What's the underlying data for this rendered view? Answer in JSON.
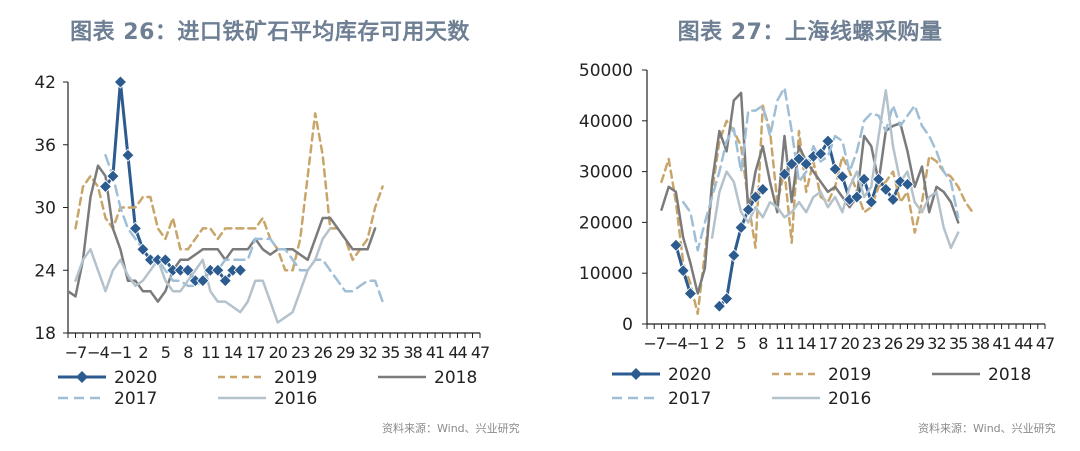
{
  "charts": [
    {
      "title": "图表 26：进口铁矿石平均库存可用天数",
      "source": "资料来源：Wind、兴业研究"
    },
    {
      "title": "图表 27：上海线螺采购量",
      "source": "资料来源：Wind、兴业研究"
    }
  ],
  "chart_data": [
    {
      "type": "line",
      "title": "图表 26：进口铁矿石平均库存可用天数",
      "ylim": [
        18,
        42
      ],
      "yticks": [
        "18",
        "24",
        "30",
        "36",
        "42"
      ],
      "x": [
        -8,
        -7,
        -6,
        -5,
        -4,
        -3,
        -2,
        -1,
        0,
        1,
        2,
        3,
        4,
        5,
        6,
        7,
        8,
        9,
        10,
        11,
        12,
        13,
        14,
        15,
        16,
        17,
        18,
        19,
        20,
        21,
        22,
        23,
        24,
        25,
        26,
        27,
        28,
        29,
        30,
        31,
        32,
        33,
        34,
        35,
        36,
        37,
        38,
        39,
        40,
        41,
        42,
        43,
        44,
        45,
        46,
        47
      ],
      "xticks": [
        "−7",
        "−4",
        "−1",
        "2",
        "5",
        "8",
        "11",
        "14",
        "17",
        "20",
        "23",
        "26",
        "29",
        "32",
        "35",
        "38",
        "41",
        "44",
        "47"
      ],
      "legend": [
        "2020",
        "2019",
        "2018",
        "2017",
        "2016"
      ],
      "series": [
        {
          "name": "2020",
          "color": "#2b5b8f",
          "dash": "",
          "width": 3,
          "marker": true,
          "values": [
            null,
            null,
            null,
            null,
            null,
            32,
            33,
            42,
            35,
            28,
            26,
            25,
            25,
            25,
            24,
            24,
            24,
            23,
            23,
            24,
            24,
            23,
            24,
            24,
            null,
            null,
            null,
            null,
            null,
            null,
            null,
            null,
            null,
            null,
            null,
            null,
            null,
            null,
            null,
            null,
            null,
            null,
            null,
            null,
            null,
            null,
            null,
            null,
            null,
            null,
            null,
            null,
            null,
            null,
            null,
            null
          ]
        },
        {
          "name": "2019",
          "color": "#c9a56a",
          "dash": "7,5",
          "width": 2.5,
          "marker": false,
          "values": [
            null,
            28,
            32,
            33,
            32,
            29,
            28,
            30,
            30,
            30,
            31,
            31,
            28,
            27,
            29,
            26,
            26,
            27,
            28,
            28,
            27,
            28,
            28,
            28,
            28,
            28,
            29,
            27,
            26,
            24,
            24,
            27,
            33,
            39,
            35,
            28,
            28,
            27,
            25,
            26,
            27,
            30,
            32,
            null,
            null,
            null,
            null,
            null,
            null,
            null,
            null,
            null,
            null,
            null,
            null,
            null
          ]
        },
        {
          "name": "2018",
          "color": "#7b7b7b",
          "dash": "",
          "width": 2.5,
          "marker": false,
          "values": [
            22,
            21.5,
            25,
            31,
            34,
            33,
            28,
            26,
            23,
            23,
            22,
            22,
            21,
            22,
            24,
            25,
            25,
            25.5,
            26,
            26,
            26,
            25,
            26,
            26,
            26,
            27,
            26,
            25.5,
            26,
            26,
            26,
            25.5,
            25,
            27,
            29,
            29,
            28,
            27,
            26,
            26,
            26,
            28,
            null,
            null,
            null,
            null,
            null,
            null,
            null,
            null,
            null,
            null,
            null,
            null,
            null,
            null
          ]
        },
        {
          "name": "2017",
          "color": "#9fbfd6",
          "dash": "10,6",
          "width": 2.5,
          "marker": false,
          "values": [
            null,
            null,
            null,
            null,
            null,
            35,
            33,
            30,
            28,
            27,
            26,
            25,
            25,
            24,
            23,
            23,
            22.5,
            22.5,
            23,
            24,
            24,
            25,
            25,
            25,
            25,
            27,
            27,
            27,
            26,
            26,
            25,
            24,
            24,
            25,
            25,
            24,
            23,
            22,
            22,
            22.5,
            23,
            23,
            21,
            null,
            null,
            null,
            null,
            null,
            null,
            null,
            null,
            null,
            null,
            null,
            null,
            null
          ]
        },
        {
          "name": "2016",
          "color": "#b4c2cc",
          "dash": "",
          "width": 2.5,
          "marker": false,
          "values": [
            null,
            23,
            25,
            26,
            24,
            22,
            24,
            25,
            23.5,
            22.5,
            23,
            24,
            25,
            23,
            22,
            22,
            23,
            24,
            25,
            22,
            21,
            21,
            20.5,
            20,
            21,
            23,
            23,
            21,
            19,
            19.5,
            20,
            22,
            24,
            25,
            27,
            28,
            null,
            null,
            null,
            null,
            null,
            null,
            null,
            null,
            null,
            null,
            null,
            null,
            null,
            null,
            null,
            null,
            null,
            null,
            null,
            null
          ]
        }
      ]
    },
    {
      "type": "line",
      "title": "图表 27：上海线螺采购量",
      "ylim": [
        0,
        50000
      ],
      "yticks": [
        "0",
        "10000",
        "20000",
        "30000",
        "40000",
        "50000"
      ],
      "x": [
        -8,
        -7,
        -6,
        -5,
        -4,
        -3,
        -2,
        -1,
        0,
        1,
        2,
        3,
        4,
        5,
        6,
        7,
        8,
        9,
        10,
        11,
        12,
        13,
        14,
        15,
        16,
        17,
        18,
        19,
        20,
        21,
        22,
        23,
        24,
        25,
        26,
        27,
        28,
        29,
        30,
        31,
        32,
        33,
        34,
        35,
        36,
        37,
        38,
        39,
        40,
        41,
        42,
        43,
        44,
        45,
        46,
        47
      ],
      "xticks": [
        "−7",
        "−4",
        "−1",
        "2",
        "5",
        "8",
        "11",
        "14",
        "17",
        "20",
        "23",
        "26",
        "29",
        "32",
        "35",
        "38",
        "41",
        "44",
        "47"
      ],
      "legend": [
        "2020",
        "2019",
        "2018",
        "2017",
        "2016"
      ],
      "series": [
        {
          "name": "2020",
          "color": "#2b5b8f",
          "dash": "",
          "width": 3,
          "marker": true,
          "values": [
            null,
            null,
            null,
            null,
            15500,
            10500,
            6000,
            null,
            null,
            null,
            3500,
            5000,
            13500,
            19000,
            22500,
            25000,
            26500,
            null,
            null,
            29500,
            31500,
            32500,
            31500,
            33000,
            33500,
            36000,
            30500,
            29000,
            24500,
            25000,
            28500,
            24000,
            28500,
            26500,
            24500,
            28000,
            27500,
            null,
            null,
            null,
            null,
            null,
            null,
            null,
            null,
            null,
            null,
            null,
            null,
            null,
            null,
            null,
            null,
            null,
            null,
            null
          ]
        },
        {
          "name": "2019",
          "color": "#c9a56a",
          "dash": "7,5",
          "width": 2.5,
          "marker": false,
          "values": [
            null,
            null,
            28000,
            32500,
            24000,
            12000,
            8000,
            2000,
            14000,
            26000,
            36000,
            40000,
            38000,
            35000,
            24000,
            15000,
            43000,
            38000,
            24000,
            30000,
            16000,
            38000,
            26000,
            32000,
            25000,
            24000,
            27000,
            33000,
            30000,
            26000,
            22000,
            23000,
            27000,
            28000,
            30000,
            24000,
            26000,
            18000,
            24000,
            33000,
            32000,
            30000,
            29000,
            27000,
            24000,
            22000,
            null,
            null,
            null,
            null,
            null,
            null,
            null,
            null,
            null,
            null
          ]
        },
        {
          "name": "2018",
          "color": "#7b7b7b",
          "dash": "",
          "width": 2.5,
          "marker": false,
          "values": [
            null,
            null,
            22500,
            27000,
            26000,
            17000,
            12000,
            6000,
            11000,
            28000,
            38000,
            34000,
            44000,
            45500,
            22000,
            30000,
            35000,
            28000,
            22000,
            37000,
            24000,
            35000,
            32000,
            30000,
            28000,
            26000,
            27000,
            25000,
            23000,
            25000,
            37000,
            35000,
            28000,
            38000,
            39000,
            39500,
            34000,
            27000,
            31000,
            22000,
            27000,
            26000,
            24000,
            20000,
            null,
            null,
            null,
            null,
            null,
            null,
            null,
            null,
            null,
            null,
            null,
            null
          ]
        },
        {
          "name": "2017",
          "color": "#9fbfd6",
          "dash": "10,6",
          "width": 2.5,
          "marker": false,
          "values": [
            null,
            null,
            null,
            null,
            null,
            24000,
            22000,
            14500,
            20000,
            25000,
            30000,
            36000,
            38500,
            30000,
            42000,
            42000,
            43000,
            37000,
            44000,
            46500,
            38000,
            28000,
            30000,
            35000,
            32000,
            33000,
            37000,
            36000,
            30000,
            34000,
            40000,
            41500,
            41000,
            38000,
            43000,
            39000,
            41000,
            43000,
            39000,
            37000,
            34000,
            30000,
            28000,
            21000,
            null,
            null,
            null,
            null,
            null,
            null,
            null,
            null,
            null,
            null,
            null,
            null
          ]
        },
        {
          "name": "2016",
          "color": "#b4c2cc",
          "dash": "",
          "width": 2.5,
          "marker": false,
          "values": [
            null,
            null,
            null,
            null,
            null,
            null,
            null,
            null,
            null,
            17000,
            26000,
            30000,
            28000,
            22000,
            20000,
            23000,
            21000,
            24000,
            23000,
            21000,
            22000,
            24000,
            22000,
            25000,
            26000,
            23000,
            25000,
            22000,
            27000,
            30000,
            25000,
            27000,
            37000,
            46000,
            35000,
            28000,
            30000,
            24000,
            22000,
            25000,
            26000,
            19000,
            15000,
            18000,
            null,
            null,
            null,
            null,
            null,
            null,
            null,
            null,
            null,
            null,
            null,
            null
          ]
        }
      ]
    }
  ]
}
